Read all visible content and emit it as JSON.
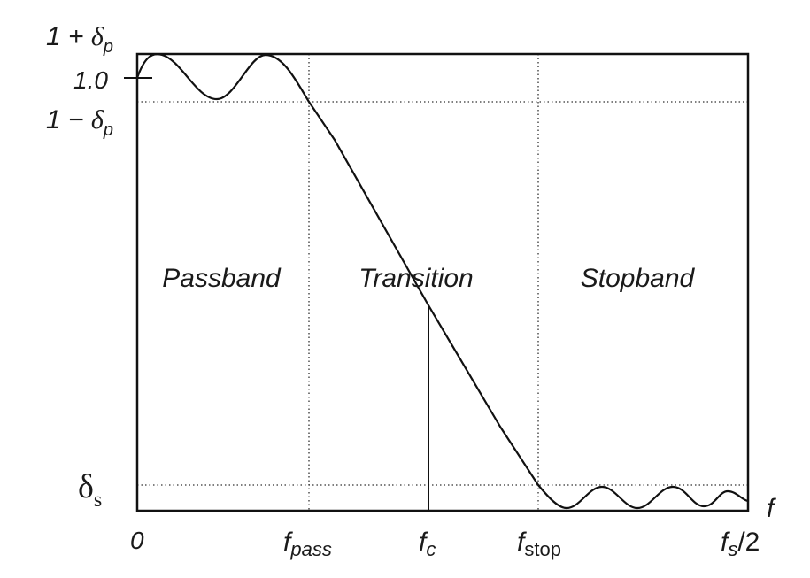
{
  "y_labels": {
    "upper_prefix": "1 + ",
    "upper_sym": "δ",
    "upper_sub": "p",
    "one": "1.0",
    "lower_prefix": "1 − ",
    "lower_sym": "δ",
    "lower_sub": "p",
    "stop_sym": "δ",
    "stop_sub": "s"
  },
  "x_labels": {
    "zero": "0",
    "pass_main": "f",
    "pass_sub": "pass",
    "c_main": "f",
    "c_sub": "c",
    "stop_main": "f",
    "stop_sub": "stop",
    "end_main": "f",
    "end_sub": "s",
    "end_suffix": "/2",
    "axis": "f"
  },
  "regions": {
    "passband": "Passband",
    "transition": "Transition",
    "stopband": "Stopband"
  }
}
